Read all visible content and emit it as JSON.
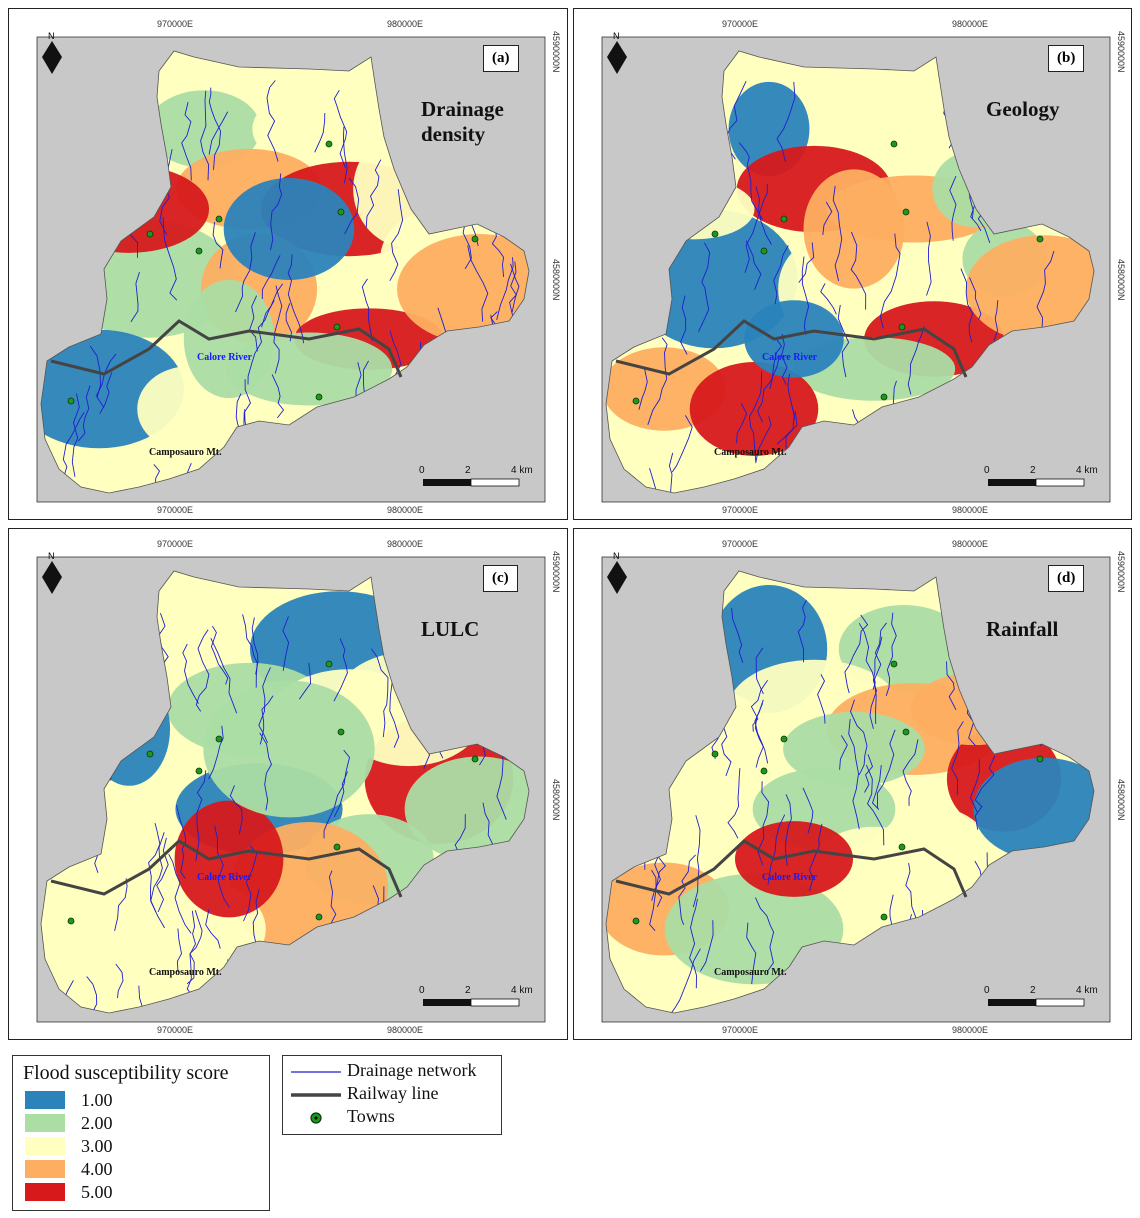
{
  "panels": [
    {
      "id": "a",
      "label": "(a)",
      "title_line1": "Drainage",
      "title_line2": "density",
      "classes": [
        2,
        3,
        4,
        5,
        3,
        2,
        4,
        5,
        1,
        2,
        3,
        4,
        5,
        3,
        2,
        1
      ]
    },
    {
      "id": "b",
      "label": "(b)",
      "title_line1": "Geology",
      "title_line2": "",
      "classes": [
        1,
        3,
        5,
        4,
        2,
        1,
        3,
        5,
        4,
        2,
        5,
        4,
        3,
        2,
        1,
        4
      ]
    },
    {
      "id": "c",
      "label": "(c)",
      "title_line1": "LULC",
      "title_line2": "",
      "classes": [
        3,
        1,
        2,
        3,
        5,
        3,
        1,
        2,
        3,
        4,
        3,
        2,
        1,
        3,
        5,
        2
      ]
    },
    {
      "id": "d",
      "label": "(d)",
      "title_line1": "Rainfall",
      "title_line2": "",
      "classes": [
        1,
        2,
        3,
        4,
        5,
        3,
        2,
        3,
        4,
        3,
        2,
        1,
        3,
        4,
        5,
        2
      ]
    }
  ],
  "coords": {
    "x_left": "970000E",
    "x_right": "980000E",
    "y_top": "4590000N",
    "y_mid": "4580000N"
  },
  "labels": {
    "river": "Calore River",
    "mountain": "Camposauro Mt.",
    "north": "N"
  },
  "scale": {
    "zero": "0",
    "two": "2",
    "four": "4 km"
  },
  "legend_score": {
    "title": "Flood susceptibility score",
    "items": [
      {
        "label": "1.00",
        "color": "#2b83ba"
      },
      {
        "label": "2.00",
        "color": "#abdda4"
      },
      {
        "label": "3.00",
        "color": "#ffffbf"
      },
      {
        "label": "4.00",
        "color": "#fdae61"
      },
      {
        "label": "5.00",
        "color": "#d7191c"
      }
    ]
  },
  "legend_features": {
    "drainage": "Drainage network",
    "railway": "Railway line",
    "towns": "Towns"
  },
  "colors": {
    "drainage": "#1f1fd0",
    "railway": "#444444",
    "town": "#1a9a1a",
    "background": "#c8c8c8"
  }
}
